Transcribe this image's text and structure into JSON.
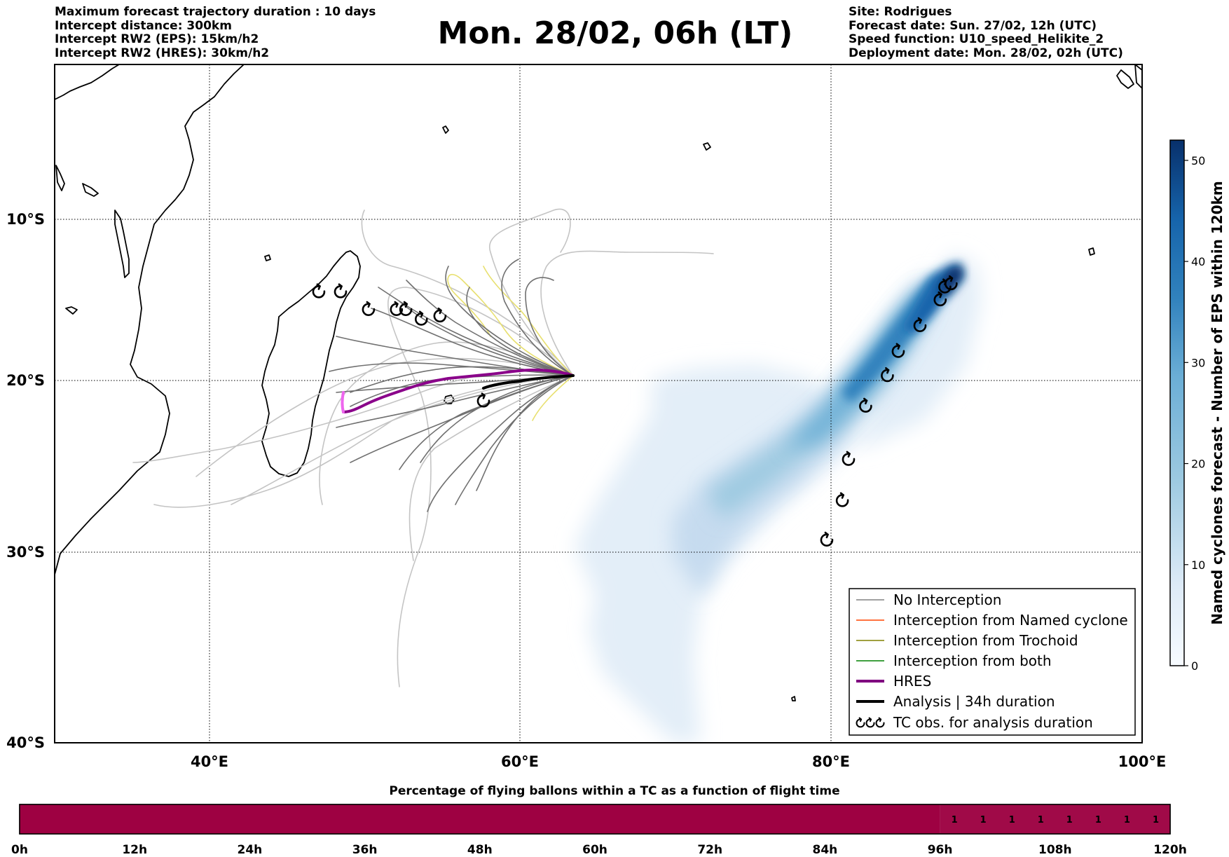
{
  "header_left": [
    "Maximum forecast trajectory duration : 10 days",
    "Intercept distance: 300km",
    "Intercept RW2 (EPS):  15km/h2",
    "Intercept RW2 (HRES): 30km/h2"
  ],
  "header_right": [
    "Site: Rodrigues",
    "Forecast date: Sun. 27/02, 12h (UTC)",
    "Speed function: U10_speed_Helikite_2",
    "Deployment date: Mon. 28/02, 02h (UTC)"
  ],
  "title": "Mon. 28/02, 06h (LT)",
  "map": {
    "lon_range": [
      30,
      100
    ],
    "lat_range": [
      -40,
      -1
    ],
    "lon_ticks": [
      "40°E",
      "60°E",
      "80°E",
      "100°E"
    ],
    "lat_ticks": [
      "10°S",
      "20°S",
      "30°S",
      "40°S"
    ],
    "grid": true
  },
  "legend": {
    "placement": "lower-right",
    "items": [
      {
        "label": "No Interception",
        "color": "#808080",
        "style": "thin-line"
      },
      {
        "label": "Interception from Named cyclone",
        "color": "#ff4500",
        "style": "thin-line"
      },
      {
        "label": "Interception from Trochoid",
        "color": "#808000",
        "style": "thin-line"
      },
      {
        "label": "Interception from both",
        "color": "#008000",
        "style": "thin-line"
      },
      {
        "label": "HRES",
        "color": "#800080",
        "style": "thick-line"
      },
      {
        "label": "Analysis | 34h duration",
        "color": "#000000",
        "style": "thick-line"
      },
      {
        "label": "TC obs. for analysis duration",
        "color": "#000000",
        "style": "cyclone-icons"
      }
    ]
  },
  "colorbar": {
    "label": "Named cyclones forecast - Number of EPS within 120km",
    "ticks": [
      "0",
      "10",
      "20",
      "30",
      "40",
      "50"
    ],
    "range": [
      0,
      52
    ],
    "colormap": "Blues"
  },
  "tc_observations": [
    {
      "lon": 87.7,
      "lat": -14.0
    },
    {
      "lon": 87.3,
      "lat": -14.2
    },
    {
      "lon": 87.0,
      "lat": -15.0
    },
    {
      "lon": 85.7,
      "lat": -16.6
    },
    {
      "lon": 84.3,
      "lat": -18.2
    },
    {
      "lon": 83.6,
      "lat": -19.7
    },
    {
      "lon": 82.2,
      "lat": -21.5
    },
    {
      "lon": 81.1,
      "lat": -24.6
    },
    {
      "lon": 80.7,
      "lat": -27.0
    },
    {
      "lon": 79.7,
      "lat": -29.3
    },
    {
      "lon": 47.0,
      "lat": -14.5
    },
    {
      "lon": 48.4,
      "lat": -14.5
    },
    {
      "lon": 50.2,
      "lat": -15.6
    },
    {
      "lon": 52.0,
      "lat": -15.6
    },
    {
      "lon": 52.6,
      "lat": -15.6
    },
    {
      "lon": 53.6,
      "lat": -16.2
    },
    {
      "lon": 54.8,
      "lat": -16.0
    },
    {
      "lon": 57.6,
      "lat": -21.2
    }
  ],
  "progress_bar": {
    "title": "Percentage of flying ballons within a TC as a function of flight time",
    "ticks": [
      "0h",
      "12h",
      "24h",
      "36h",
      "48h",
      "60h",
      "72h",
      "84h",
      "96h",
      "108h",
      "120h"
    ],
    "range_hours": [
      0,
      120
    ],
    "segments": [
      {
        "from_h": 0,
        "to_h": 96,
        "value": 0
      },
      {
        "from_h": 96,
        "to_h": 120,
        "value": 1
      }
    ],
    "cell_labels": [
      "1",
      "1",
      "1",
      "1",
      "1",
      "1",
      "1",
      "1"
    ],
    "fill_color": "#9e0142"
  },
  "colors": {
    "eps_line": "#707070",
    "eps_line_light": "#c4c4c4",
    "trochoid_yellow": "#e8e070",
    "hres": "#8a008a",
    "hres_pink": "#ee66ee",
    "analysis": "#000000"
  }
}
